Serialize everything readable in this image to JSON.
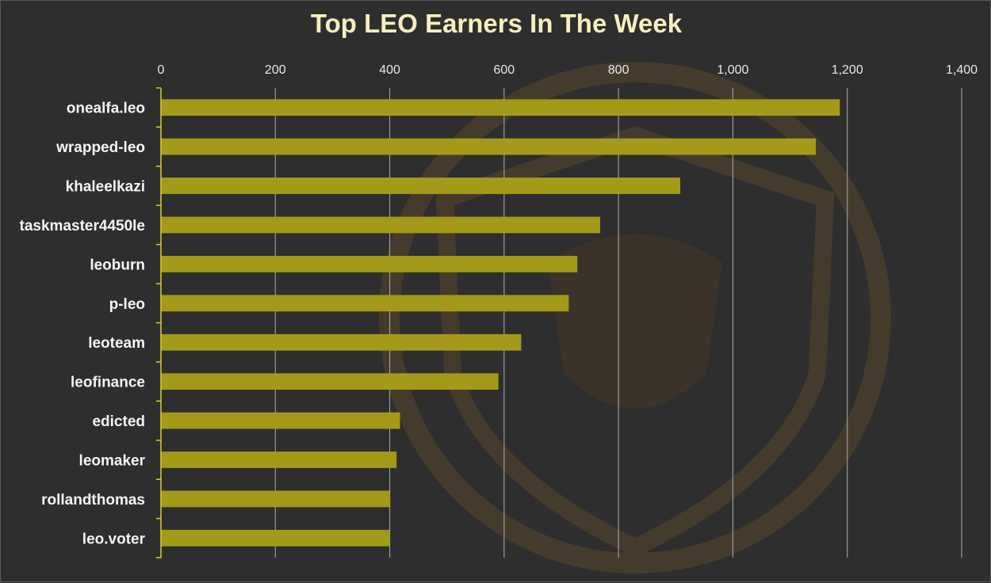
{
  "chart_data": {
    "type": "bar",
    "orientation": "horizontal",
    "title": "Top LEO Earners In The Week",
    "categories": [
      "onealfa.leo",
      "wrapped-leo",
      "khaleelkazi",
      "taskmaster4450le",
      "leoburn",
      "p-leo",
      "leoteam",
      "leofinance",
      "edicted",
      "leomaker",
      "rollandthomas",
      "leo.voter"
    ],
    "values": [
      1187,
      1145,
      908,
      768,
      728,
      713,
      630,
      590,
      418,
      412,
      401,
      400
    ],
    "xlim": [
      0,
      1400
    ],
    "xticks": [
      0,
      200,
      400,
      600,
      800,
      1000,
      1200,
      1400
    ],
    "xtick_labels": [
      "0",
      "200",
      "400",
      "600",
      "800",
      "1,000",
      "1,200",
      "1,400"
    ],
    "x_axis_position": "top",
    "grid": true,
    "xlabel": "",
    "ylabel": ""
  },
  "colors": {
    "bar": "#a39a1a",
    "grid": "#9a9a9a",
    "axis": "#d8cf2a",
    "watermark": "#7a5a28"
  }
}
